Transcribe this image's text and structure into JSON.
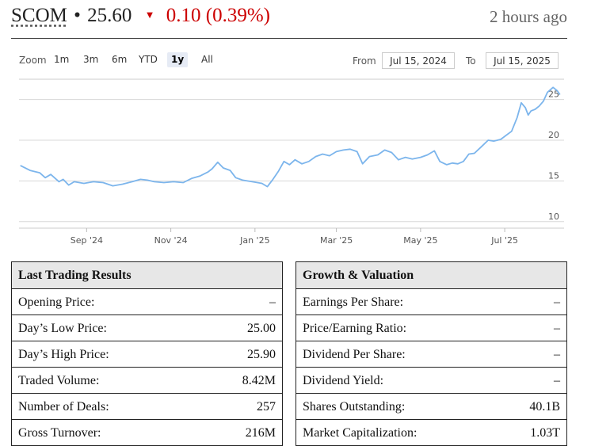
{
  "quote": {
    "symbol": "SCOM",
    "separator": "•",
    "price": "25.60",
    "arrow": "▼",
    "change": "0.10 (0.39%)",
    "updated": "2 hours ago"
  },
  "controls": {
    "zoom_label": "Zoom",
    "zoom_options": [
      "1m",
      "3m",
      "6m",
      "YTD",
      "1y",
      "All"
    ],
    "active_zoom": "1y",
    "from_label": "From",
    "from_value": "Jul 15, 2024",
    "to_label": "To",
    "to_value": "Jul 15, 2025"
  },
  "chart_data": {
    "type": "line",
    "title": "",
    "xlabel": "",
    "ylabel": "",
    "x_ticks": [
      "Sep '24",
      "Nov '24",
      "Jan '25",
      "Mar '25",
      "May '25",
      "Jul '25"
    ],
    "y_ticks": [
      10,
      15,
      20,
      25
    ],
    "ylim": [
      9.2,
      27.5
    ],
    "grid": true,
    "color": "#7cb5ec",
    "series": [
      {
        "points": [
          [
            "2024-07-15",
            16.9
          ],
          [
            "2024-07-22",
            16.3
          ],
          [
            "2024-07-29",
            16.0
          ],
          [
            "2024-08-02",
            15.4
          ],
          [
            "2024-08-06",
            15.8
          ],
          [
            "2024-08-12",
            14.9
          ],
          [
            "2024-08-15",
            15.2
          ],
          [
            "2024-08-19",
            14.5
          ],
          [
            "2024-08-23",
            14.9
          ],
          [
            "2024-08-30",
            14.7
          ],
          [
            "2024-09-06",
            14.9
          ],
          [
            "2024-09-13",
            14.8
          ],
          [
            "2024-09-20",
            14.4
          ],
          [
            "2024-09-27",
            14.6
          ],
          [
            "2024-10-04",
            14.9
          ],
          [
            "2024-10-10",
            15.2
          ],
          [
            "2024-10-15",
            15.1
          ],
          [
            "2024-10-20",
            14.9
          ],
          [
            "2024-10-27",
            14.8
          ],
          [
            "2024-11-03",
            14.9
          ],
          [
            "2024-11-10",
            14.8
          ],
          [
            "2024-11-16",
            15.3
          ],
          [
            "2024-11-22",
            15.6
          ],
          [
            "2024-11-28",
            16.1
          ],
          [
            "2024-12-01",
            16.5
          ],
          [
            "2024-12-05",
            17.3
          ],
          [
            "2024-12-09",
            16.6
          ],
          [
            "2024-12-14",
            16.3
          ],
          [
            "2024-12-18",
            15.4
          ],
          [
            "2024-12-23",
            15.1
          ],
          [
            "2024-12-30",
            14.9
          ],
          [
            "2025-01-06",
            14.7
          ],
          [
            "2025-01-10",
            14.3
          ],
          [
            "2025-01-14",
            15.2
          ],
          [
            "2025-01-18",
            16.2
          ],
          [
            "2025-01-22",
            17.4
          ],
          [
            "2025-01-26",
            17.0
          ],
          [
            "2025-01-30",
            17.6
          ],
          [
            "2025-02-04",
            17.1
          ],
          [
            "2025-02-09",
            17.4
          ],
          [
            "2025-02-14",
            18.0
          ],
          [
            "2025-02-19",
            18.3
          ],
          [
            "2025-02-24",
            18.1
          ],
          [
            "2025-03-01",
            18.6
          ],
          [
            "2025-03-06",
            18.8
          ],
          [
            "2025-03-11",
            18.9
          ],
          [
            "2025-03-16",
            18.6
          ],
          [
            "2025-03-20",
            17.1
          ],
          [
            "2025-03-25",
            18.0
          ],
          [
            "2025-03-31",
            18.2
          ],
          [
            "2025-04-05",
            18.8
          ],
          [
            "2025-04-10",
            18.5
          ],
          [
            "2025-04-15",
            17.6
          ],
          [
            "2025-04-20",
            17.9
          ],
          [
            "2025-04-25",
            17.7
          ],
          [
            "2025-05-01",
            17.9
          ],
          [
            "2025-05-06",
            18.2
          ],
          [
            "2025-05-11",
            18.7
          ],
          [
            "2025-05-15",
            17.4
          ],
          [
            "2025-05-20",
            17.0
          ],
          [
            "2025-05-24",
            17.2
          ],
          [
            "2025-05-28",
            17.1
          ],
          [
            "2025-06-01",
            17.4
          ],
          [
            "2025-06-05",
            18.3
          ],
          [
            "2025-06-09",
            18.4
          ],
          [
            "2025-06-14",
            19.2
          ],
          [
            "2025-06-19",
            20.0
          ],
          [
            "2025-06-23",
            19.9
          ],
          [
            "2025-06-28",
            20.1
          ],
          [
            "2025-07-02",
            20.6
          ],
          [
            "2025-07-06",
            21.1
          ],
          [
            "2025-07-10",
            22.8
          ],
          [
            "2025-07-13",
            24.6
          ],
          [
            "2025-07-16",
            24.0
          ],
          [
            "2025-07-18",
            23.1
          ],
          [
            "2025-07-20",
            23.6
          ],
          [
            "2025-07-23",
            23.8
          ],
          [
            "2025-07-26",
            24.2
          ],
          [
            "2025-07-29",
            24.8
          ],
          [
            "2025-08-01",
            25.9
          ],
          [
            "2025-08-05",
            26.5
          ],
          [
            "2025-08-08",
            26.1
          ],
          [
            "2025-08-10",
            25.6
          ]
        ]
      }
    ]
  },
  "last_trading": {
    "title": "Last Trading Results",
    "rows": [
      {
        "label": "Opening Price:",
        "value": "–"
      },
      {
        "label": "Day’s Low Price:",
        "value": "25.00"
      },
      {
        "label": "Day’s High Price:",
        "value": "25.90"
      },
      {
        "label": "Traded Volume:",
        "value": "8.42M"
      },
      {
        "label": "Number of Deals:",
        "value": "257"
      },
      {
        "label": "Gross Turnover:",
        "value": "216M"
      }
    ]
  },
  "growth": {
    "title": "Growth & Valuation",
    "rows": [
      {
        "label": "Earnings Per Share:",
        "value": "–"
      },
      {
        "label": "Price/Earning Ratio:",
        "value": "–"
      },
      {
        "label": "Dividend Per Share:",
        "value": "–"
      },
      {
        "label": "Dividend Yield:",
        "value": "–"
      },
      {
        "label": "Shares Outstanding:",
        "value": "40.1B"
      },
      {
        "label": "Market Capitalization:",
        "value": "1.03T"
      }
    ]
  }
}
